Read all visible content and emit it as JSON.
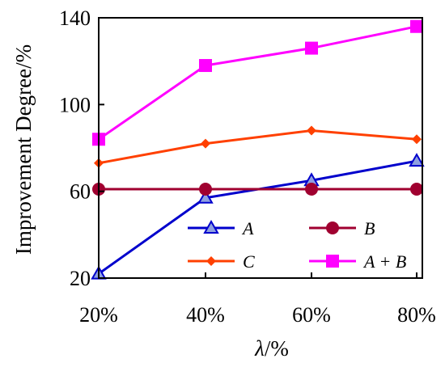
{
  "chart_data": {
    "type": "line",
    "xlabel": "λ/%",
    "ylabel": "Improvement Degree/%",
    "categories": [
      "20%",
      "40%",
      "60%",
      "80%"
    ],
    "ylim": [
      20,
      140
    ],
    "yticks": [
      "20",
      "60",
      "100",
      "140"
    ],
    "grid": false,
    "legend_position": "lower-right inside plot",
    "series": [
      {
        "name": "A",
        "values": [
          22,
          57,
          65,
          74
        ],
        "color": "#0000cc",
        "marker": "triangle"
      },
      {
        "name": "B",
        "values": [
          61,
          61,
          61,
          61
        ],
        "color": "#a00030",
        "marker": "circle"
      },
      {
        "name": "C",
        "values": [
          73,
          82,
          88,
          84
        ],
        "color": "#ff4000",
        "marker": "diamond"
      },
      {
        "name": "A + B",
        "values": [
          84,
          118,
          126,
          136
        ],
        "color": "#ff00ff",
        "marker": "square"
      }
    ]
  }
}
